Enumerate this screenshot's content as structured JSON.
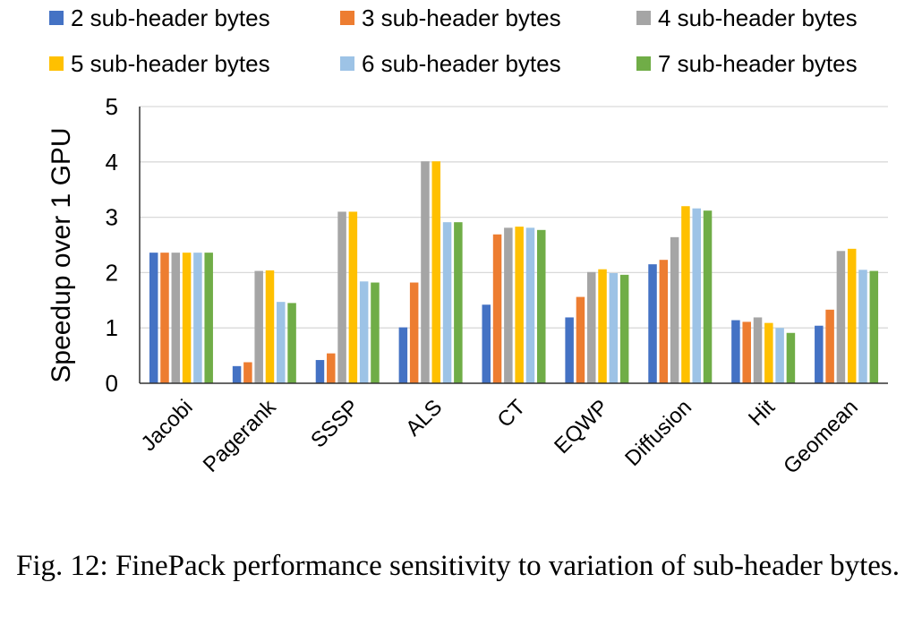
{
  "chart_data": {
    "type": "bar",
    "ylabel": "Speedup over 1 GPU",
    "xlabel": "",
    "ylim": [
      0,
      5
    ],
    "yticks": [
      "0",
      "1",
      "2",
      "3",
      "4",
      "5"
    ],
    "grid": true,
    "legend_position": "top",
    "categories": [
      "Jacobi",
      "Pagerank",
      "SSSP",
      "ALS",
      "CT",
      "EQWP",
      "Diffusion",
      "Hit",
      "Geomean"
    ],
    "series": [
      {
        "name": "2 sub-header bytes",
        "color": "#4472C4",
        "values": [
          2.36,
          0.31,
          0.42,
          1.01,
          1.42,
          1.19,
          2.15,
          1.14,
          1.04
        ]
      },
      {
        "name": "3 sub-header bytes",
        "color": "#ED7D31",
        "values": [
          2.36,
          0.38,
          0.54,
          1.82,
          2.69,
          1.56,
          2.23,
          1.11,
          1.33
        ]
      },
      {
        "name": "4 sub-header bytes",
        "color": "#A5A5A5",
        "values": [
          2.36,
          2.03,
          3.1,
          4.01,
          2.81,
          2.01,
          2.64,
          1.19,
          2.39
        ]
      },
      {
        "name": "5 sub-header bytes",
        "color": "#FFC000",
        "values": [
          2.36,
          2.04,
          3.1,
          4.01,
          2.83,
          2.06,
          3.2,
          1.09,
          2.43
        ]
      },
      {
        "name": "6 sub-header bytes",
        "color": "#9DC3E6",
        "values": [
          2.36,
          1.47,
          1.84,
          2.91,
          2.81,
          1.99,
          3.16,
          1.0,
          2.05
        ]
      },
      {
        "name": "7 sub-header bytes",
        "color": "#70AD47",
        "values": [
          2.36,
          1.45,
          1.82,
          2.91,
          2.77,
          1.96,
          3.12,
          0.91,
          2.03
        ]
      }
    ]
  },
  "caption": "Fig. 12: FinePack performance sensitivity to variation of sub-header bytes."
}
